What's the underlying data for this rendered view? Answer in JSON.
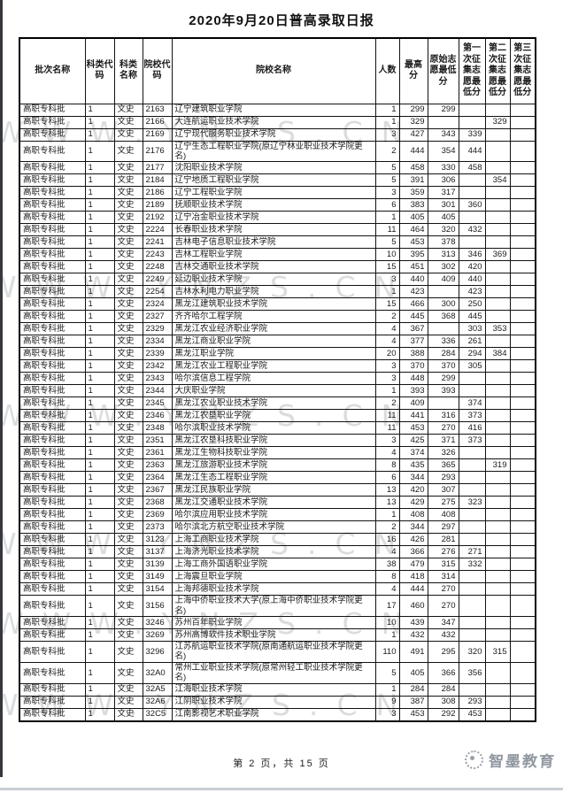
{
  "page": {
    "title": "2020年9月20日普高录取日报",
    "footer": "第 2 页，共 15 页",
    "watermark": "WWW.YNZS.CN",
    "brand": "智墨教育"
  },
  "colors": {
    "border": "#121212",
    "text": "#1a1a1a",
    "watermark": "#a9adb2",
    "brand_gray": "#9097a0"
  },
  "table": {
    "columns": [
      "批次名称",
      "科类代码",
      "科类名称",
      "院校代码",
      "院校名称",
      "人数",
      "最高分",
      "原始志愿最低分",
      "第一次征集志愿最低分",
      "第二次征集志愿最低分",
      "第三次征集志愿最低分"
    ],
    "rows": [
      [
        "高职专科批",
        "1",
        "文史",
        "2163",
        "辽宁建筑职业学院",
        "1",
        "299",
        "299",
        "",
        "",
        ""
      ],
      [
        "高职专科批",
        "1",
        "文史",
        "2166",
        "大连航运职业技术学院",
        "1",
        "329",
        "",
        "",
        "329",
        ""
      ],
      [
        "高职专科批",
        "1",
        "文史",
        "2169",
        "辽宁现代服务职业技术学院",
        "3",
        "427",
        "343",
        "339",
        "",
        ""
      ],
      [
        "高职专科批",
        "1",
        "文史",
        "2176",
        "辽宁生态工程职业学院(原辽宁林业职业技术学院更名)",
        "2",
        "444",
        "354",
        "444",
        "",
        ""
      ],
      [
        "高职专科批",
        "1",
        "文史",
        "2177",
        "沈阳职业技术学院",
        "5",
        "458",
        "330",
        "458",
        "",
        ""
      ],
      [
        "高职专科批",
        "1",
        "文史",
        "2184",
        "辽宁地质工程职业学院",
        "5",
        "391",
        "306",
        "",
        "354",
        ""
      ],
      [
        "高职专科批",
        "1",
        "文史",
        "2186",
        "辽宁工程职业学院",
        "3",
        "359",
        "317",
        "",
        "",
        ""
      ],
      [
        "高职专科批",
        "1",
        "文史",
        "2189",
        "抚顺职业技术学院",
        "6",
        "383",
        "301",
        "360",
        "",
        ""
      ],
      [
        "高职专科批",
        "1",
        "文史",
        "2192",
        "辽宁冶金职业技术学院",
        "1",
        "405",
        "405",
        "",
        "",
        ""
      ],
      [
        "高职专科批",
        "1",
        "文史",
        "2224",
        "长春职业技术学院",
        "11",
        "464",
        "320",
        "432",
        "",
        ""
      ],
      [
        "高职专科批",
        "1",
        "文史",
        "2241",
        "吉林电子信息职业技术学院",
        "5",
        "453",
        "378",
        "",
        "",
        ""
      ],
      [
        "高职专科批",
        "1",
        "文史",
        "2243",
        "吉林工程职业学院",
        "10",
        "395",
        "313",
        "346",
        "369",
        ""
      ],
      [
        "高职专科批",
        "1",
        "文史",
        "2248",
        "吉林交通职业技术学院",
        "15",
        "451",
        "302",
        "420",
        "",
        ""
      ],
      [
        "高职专科批",
        "1",
        "文史",
        "2249",
        "延边职业技术学院",
        "3",
        "440",
        "409",
        "440",
        "",
        ""
      ],
      [
        "高职专科批",
        "1",
        "文史",
        "2254",
        "吉林水利电力职业学院",
        "1",
        "423",
        "",
        "423",
        "",
        ""
      ],
      [
        "高职专科批",
        "1",
        "文史",
        "2324",
        "黑龙江建筑职业技术学院",
        "15",
        "466",
        "300",
        "250",
        "",
        ""
      ],
      [
        "高职专科批",
        "1",
        "文史",
        "2327",
        "齐齐哈尔工程学院",
        "2",
        "445",
        "368",
        "445",
        "",
        ""
      ],
      [
        "高职专科批",
        "1",
        "文史",
        "2329",
        "黑龙江农业经济职业学院",
        "4",
        "367",
        "",
        "303",
        "353",
        ""
      ],
      [
        "高职专科批",
        "1",
        "文史",
        "2334",
        "黑龙江商业职业学院",
        "4",
        "377",
        "336",
        "261",
        "",
        ""
      ],
      [
        "高职专科批",
        "1",
        "文史",
        "2339",
        "黑龙江职业学院",
        "20",
        "388",
        "284",
        "294",
        "384",
        ""
      ],
      [
        "高职专科批",
        "1",
        "文史",
        "2342",
        "黑龙江农业工程职业学院",
        "3",
        "370",
        "370",
        "305",
        "",
        ""
      ],
      [
        "高职专科批",
        "1",
        "文史",
        "2343",
        "哈尔滨信息工程学院",
        "3",
        "448",
        "299",
        "",
        "",
        ""
      ],
      [
        "高职专科批",
        "1",
        "文史",
        "2344",
        "大庆职业学院",
        "1",
        "393",
        "393",
        "",
        "",
        ""
      ],
      [
        "高职专科批",
        "1",
        "文史",
        "2345",
        "黑龙江农业职业技术学院",
        "2",
        "409",
        "",
        "374",
        "",
        ""
      ],
      [
        "高职专科批",
        "1",
        "文史",
        "2346",
        "黑龙江农垦职业学院",
        "11",
        "441",
        "316",
        "373",
        "",
        ""
      ],
      [
        "高职专科批",
        "1",
        "文史",
        "2348",
        "哈尔滨职业技术学院",
        "11",
        "453",
        "270",
        "416",
        "",
        ""
      ],
      [
        "高职专科批",
        "1",
        "文史",
        "2351",
        "黑龙江农垦科技职业学院",
        "3",
        "425",
        "371",
        "373",
        "",
        ""
      ],
      [
        "高职专科批",
        "1",
        "文史",
        "2361",
        "黑龙江生物科技职业学院",
        "4",
        "374",
        "326",
        "",
        "",
        ""
      ],
      [
        "高职专科批",
        "1",
        "文史",
        "2363",
        "黑龙江旅游职业技术学院",
        "8",
        "435",
        "365",
        "",
        "319",
        ""
      ],
      [
        "高职专科批",
        "1",
        "文史",
        "2364",
        "黑龙江生态工程职业学院",
        "6",
        "344",
        "293",
        "",
        "",
        ""
      ],
      [
        "高职专科批",
        "1",
        "文史",
        "2367",
        "黑龙江民族职业学院",
        "13",
        "420",
        "307",
        "",
        "",
        ""
      ],
      [
        "高职专科批",
        "1",
        "文史",
        "2368",
        "黑龙江交通职业技术学院",
        "13",
        "429",
        "275",
        "323",
        "",
        ""
      ],
      [
        "高职专科批",
        "1",
        "文史",
        "2369",
        "哈尔滨应用职业技术学院",
        "1",
        "408",
        "408",
        "",
        "",
        ""
      ],
      [
        "高职专科批",
        "1",
        "文史",
        "2373",
        "哈尔滨北方航空职业技术学院",
        "2",
        "344",
        "297",
        "",
        "",
        ""
      ],
      [
        "高职专科批",
        "1",
        "文史",
        "3123",
        "上海工商职业技术学院",
        "16",
        "426",
        "281",
        "",
        "",
        ""
      ],
      [
        "高职专科批",
        "1",
        "文史",
        "3137",
        "上海济光职业技术学院",
        "4",
        "366",
        "276",
        "271",
        "",
        ""
      ],
      [
        "高职专科批",
        "1",
        "文史",
        "3139",
        "上海工商外国语职业学院",
        "38",
        "479",
        "315",
        "332",
        "",
        ""
      ],
      [
        "高职专科批",
        "1",
        "文史",
        "3149",
        "上海震旦职业学院",
        "8",
        "418",
        "314",
        "",
        "",
        ""
      ],
      [
        "高职专科批",
        "1",
        "文史",
        "3154",
        "上海邦德职业技术学院",
        "4",
        "444",
        "270",
        "",
        "",
        ""
      ],
      [
        "高职专科批",
        "1",
        "文史",
        "3156",
        "上海中侨职业技术大学(原上海中侨职业技术学院更名)",
        "17",
        "460",
        "270",
        "",
        "",
        ""
      ],
      [
        "高职专科批",
        "1",
        "文史",
        "3246",
        "苏州百年职业学院",
        "10",
        "439",
        "347",
        "",
        "",
        ""
      ],
      [
        "高职专科批",
        "1",
        "文史",
        "3269",
        "苏州高博软件技术职业学院",
        "1",
        "432",
        "432",
        "",
        "",
        ""
      ],
      [
        "高职专科批",
        "1",
        "文史",
        "3296",
        "江苏航运职业技术学院(原南通航运职业技术学院更名)",
        "110",
        "491",
        "295",
        "320",
        "315",
        ""
      ],
      [
        "高职专科批",
        "1",
        "文史",
        "32A0",
        "常州工业职业技术学院(原常州轻工职业技术学院更名)",
        "5",
        "405",
        "366",
        "356",
        "",
        ""
      ],
      [
        "高职专科批",
        "1",
        "文史",
        "32A5",
        "江海职业技术学院",
        "1",
        "284",
        "284",
        "",
        "",
        ""
      ],
      [
        "高职专科批",
        "1",
        "文史",
        "32A6",
        "江阴职业技术学院",
        "9",
        "387",
        "308",
        "293",
        "",
        ""
      ],
      [
        "高职专科批",
        "1",
        "文史",
        "32C5",
        "江南影视艺术职业学院",
        "3",
        "453",
        "292",
        "453",
        "",
        ""
      ]
    ]
  }
}
